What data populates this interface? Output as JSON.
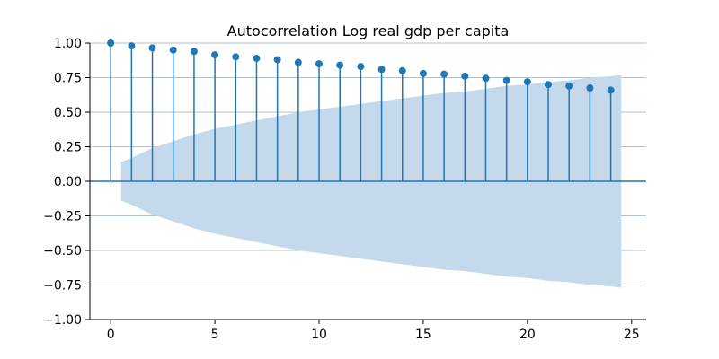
{
  "chart_data": {
    "type": "stem",
    "title": "Autocorrelation Log real gdp per capita",
    "xlabel": "",
    "ylabel": "",
    "xlim": [
      -1,
      25.7
    ],
    "ylim": [
      -1.0,
      1.0
    ],
    "x_ticks": [
      "0",
      "5",
      "10",
      "15",
      "20",
      "25"
    ],
    "x_tick_values": [
      0,
      5,
      10,
      15,
      20,
      25
    ],
    "y_ticks": [
      "1.00",
      "0.75",
      "0.50",
      "0.25",
      "0.00",
      "−0.25",
      "−0.50",
      "−0.75",
      "−1.00"
    ],
    "y_tick_values": [
      1.0,
      0.75,
      0.5,
      0.25,
      0.0,
      -0.25,
      -0.5,
      -0.75,
      -1.0
    ],
    "grid": "horizontal",
    "series": [
      {
        "lags": [
          0,
          1,
          2,
          3,
          4,
          5,
          6,
          7,
          8,
          9,
          10,
          11,
          12,
          13,
          14,
          15,
          16,
          17,
          18,
          19,
          20,
          21,
          22,
          23,
          24
        ],
        "values": [
          1.0,
          0.98,
          0.965,
          0.95,
          0.94,
          0.915,
          0.9,
          0.89,
          0.88,
          0.86,
          0.85,
          0.84,
          0.83,
          0.81,
          0.8,
          0.78,
          0.775,
          0.76,
          0.745,
          0.73,
          0.72,
          0.7,
          0.69,
          0.675,
          0.66
        ]
      }
    ],
    "confidence_band": {
      "lags": [
        0.5,
        1,
        2,
        3,
        4,
        5,
        6,
        7,
        8,
        9,
        10,
        11,
        12,
        13,
        14,
        15,
        16,
        17,
        18,
        19,
        20,
        21,
        22,
        23,
        24,
        24.5
      ],
      "upper": [
        0.14,
        0.17,
        0.24,
        0.29,
        0.34,
        0.38,
        0.41,
        0.44,
        0.47,
        0.5,
        0.52,
        0.54,
        0.56,
        0.58,
        0.6,
        0.62,
        0.64,
        0.65,
        0.67,
        0.69,
        0.7,
        0.72,
        0.73,
        0.75,
        0.76,
        0.77
      ],
      "lower": [
        -0.14,
        -0.17,
        -0.24,
        -0.29,
        -0.34,
        -0.38,
        -0.41,
        -0.44,
        -0.47,
        -0.5,
        -0.52,
        -0.54,
        -0.56,
        -0.58,
        -0.6,
        -0.62,
        -0.64,
        -0.65,
        -0.67,
        -0.69,
        -0.7,
        -0.72,
        -0.73,
        -0.75,
        -0.76,
        -0.77
      ]
    },
    "colors": {
      "stem": "#1f77b4",
      "band": "#c5d9ec",
      "grid": "#b0c4c8"
    }
  }
}
